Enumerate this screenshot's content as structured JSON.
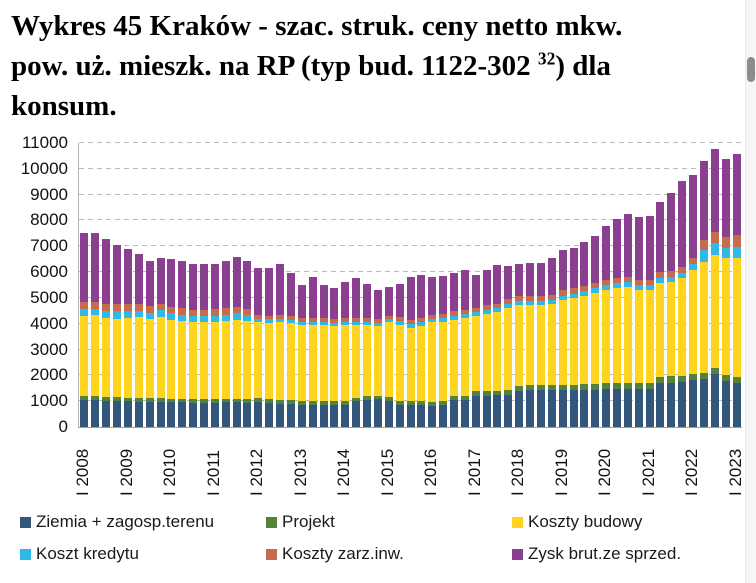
{
  "title": {
    "line1": "Wykres 45 Kraków - szac. struk. ceny netto mkw.",
    "line2_pre": "pow. uż. mieszk. na RP (typ bud. 1122-302 ",
    "line2_sup": "32",
    "line2_post": ") dla",
    "line3": "konsum."
  },
  "chart_data": {
    "type": "bar",
    "stacked": true,
    "frequency": "quarterly",
    "x_start": "2008 Q1",
    "x_end": "2023 Q1",
    "x_tick_labels": [
      "I 2008",
      "I 2009",
      "I 2010",
      "I 2011",
      "I 2012",
      "I 2013",
      "I 2014",
      "I 2015",
      "I 2016",
      "I 2017",
      "I 2018",
      "I 2019",
      "I 2020",
      "I 2021",
      "I 2022",
      "I 2023"
    ],
    "x_tick_every": 4,
    "ylim": [
      0,
      11000
    ],
    "ytick_step": 1000,
    "y_ticks": [
      0,
      1000,
      2000,
      3000,
      4000,
      5000,
      6000,
      7000,
      8000,
      9000,
      10000,
      11000
    ],
    "grid": "dashed-horizontal",
    "legend_position": "bottom",
    "series": [
      {
        "name": "Ziemia + zagosp.terenu",
        "color": "#33567D",
        "values": [
          1040,
          1040,
          1020,
          1000,
          990,
          980,
          960,
          960,
          950,
          950,
          940,
          940,
          940,
          950,
          950,
          940,
          970,
          930,
          900,
          880,
          870,
          860,
          860,
          850,
          850,
          1000,
          1050,
          1080,
          1000,
          870,
          860,
          860,
          830,
          840,
          1040,
          1050,
          1200,
          1220,
          1230,
          1240,
          1400,
          1420,
          1430,
          1430,
          1440,
          1440,
          1450,
          1450,
          1470,
          1480,
          1490,
          1480,
          1490,
          1700,
          1720,
          1730,
          1820,
          1850,
          2050,
          1780,
          1700
        ]
      },
      {
        "name": "Projekt",
        "color": "#54813B",
        "values": [
          160,
          160,
          150,
          150,
          150,
          150,
          150,
          150,
          150,
          150,
          150,
          150,
          150,
          150,
          150,
          150,
          150,
          150,
          150,
          150,
          140,
          140,
          140,
          140,
          140,
          140,
          140,
          140,
          150,
          150,
          150,
          150,
          150,
          150,
          160,
          160,
          180,
          180,
          180,
          180,
          190,
          190,
          190,
          190,
          200,
          200,
          200,
          200,
          220,
          220,
          220,
          220,
          230,
          240,
          240,
          240,
          250,
          250,
          250,
          250,
          250
        ]
      },
      {
        "name": "Koszty budowy",
        "color": "#FFD41E",
        "values": [
          3100,
          3120,
          3060,
          3050,
          3090,
          3120,
          3060,
          3150,
          3050,
          3000,
          2980,
          2960,
          2990,
          3000,
          3050,
          3000,
          2930,
          2960,
          3000,
          2990,
          2950,
          2960,
          2950,
          2930,
          2960,
          2820,
          2760,
          2700,
          2900,
          2950,
          2840,
          2900,
          3070,
          3080,
          2960,
          3000,
          2920,
          2980,
          3030,
          3190,
          3130,
          3110,
          3100,
          3150,
          3280,
          3360,
          3420,
          3540,
          3620,
          3680,
          3700,
          3610,
          3590,
          3640,
          3660,
          3800,
          4010,
          4290,
          4360,
          4510,
          4600
        ]
      },
      {
        "name": "Koszt kredytu",
        "color": "#2FB8E8",
        "values": [
          270,
          270,
          260,
          280,
          260,
          250,
          250,
          260,
          250,
          250,
          240,
          240,
          240,
          250,
          250,
          250,
          130,
          130,
          130,
          130,
          120,
          120,
          120,
          120,
          120,
          120,
          120,
          120,
          120,
          130,
          140,
          140,
          140,
          150,
          150,
          150,
          150,
          150,
          160,
          160,
          160,
          160,
          160,
          170,
          170,
          170,
          180,
          180,
          180,
          180,
          190,
          190,
          190,
          190,
          200,
          200,
          220,
          460,
          460,
          390,
          420
        ]
      },
      {
        "name": "Koszty zarz.inw.",
        "color": "#C76B4F",
        "values": [
          270,
          270,
          270,
          280,
          270,
          260,
          250,
          260,
          250,
          250,
          240,
          240,
          250,
          250,
          260,
          250,
          150,
          150,
          150,
          150,
          150,
          140,
          140,
          140,
          140,
          140,
          140,
          140,
          150,
          150,
          160,
          160,
          160,
          160,
          170,
          170,
          170,
          180,
          180,
          180,
          180,
          190,
          190,
          190,
          200,
          200,
          210,
          210,
          200,
          210,
          210,
          210,
          210,
          220,
          230,
          230,
          250,
          390,
          430,
          430,
          460
        ]
      },
      {
        "name": "Zysk brut.ze sprzed.",
        "color": "#8A3F90",
        "values": [
          2660,
          2650,
          2540,
          2290,
          2140,
          1960,
          1760,
          1770,
          1850,
          1850,
          1780,
          1770,
          1730,
          1820,
          1920,
          1860,
          1820,
          1830,
          1980,
          1650,
          1270,
          1600,
          1290,
          1190,
          1420,
          1540,
          1350,
          1130,
          1110,
          1310,
          1650,
          1670,
          1460,
          1470,
          1470,
          1550,
          1270,
          1370,
          1490,
          1280,
          1250,
          1280,
          1280,
          1410,
          1560,
          1580,
          1690,
          1820,
          2110,
          2280,
          2440,
          2420,
          2460,
          2710,
          3010,
          3320,
          3210,
          3060,
          3210,
          3010,
          3140
        ]
      }
    ]
  }
}
